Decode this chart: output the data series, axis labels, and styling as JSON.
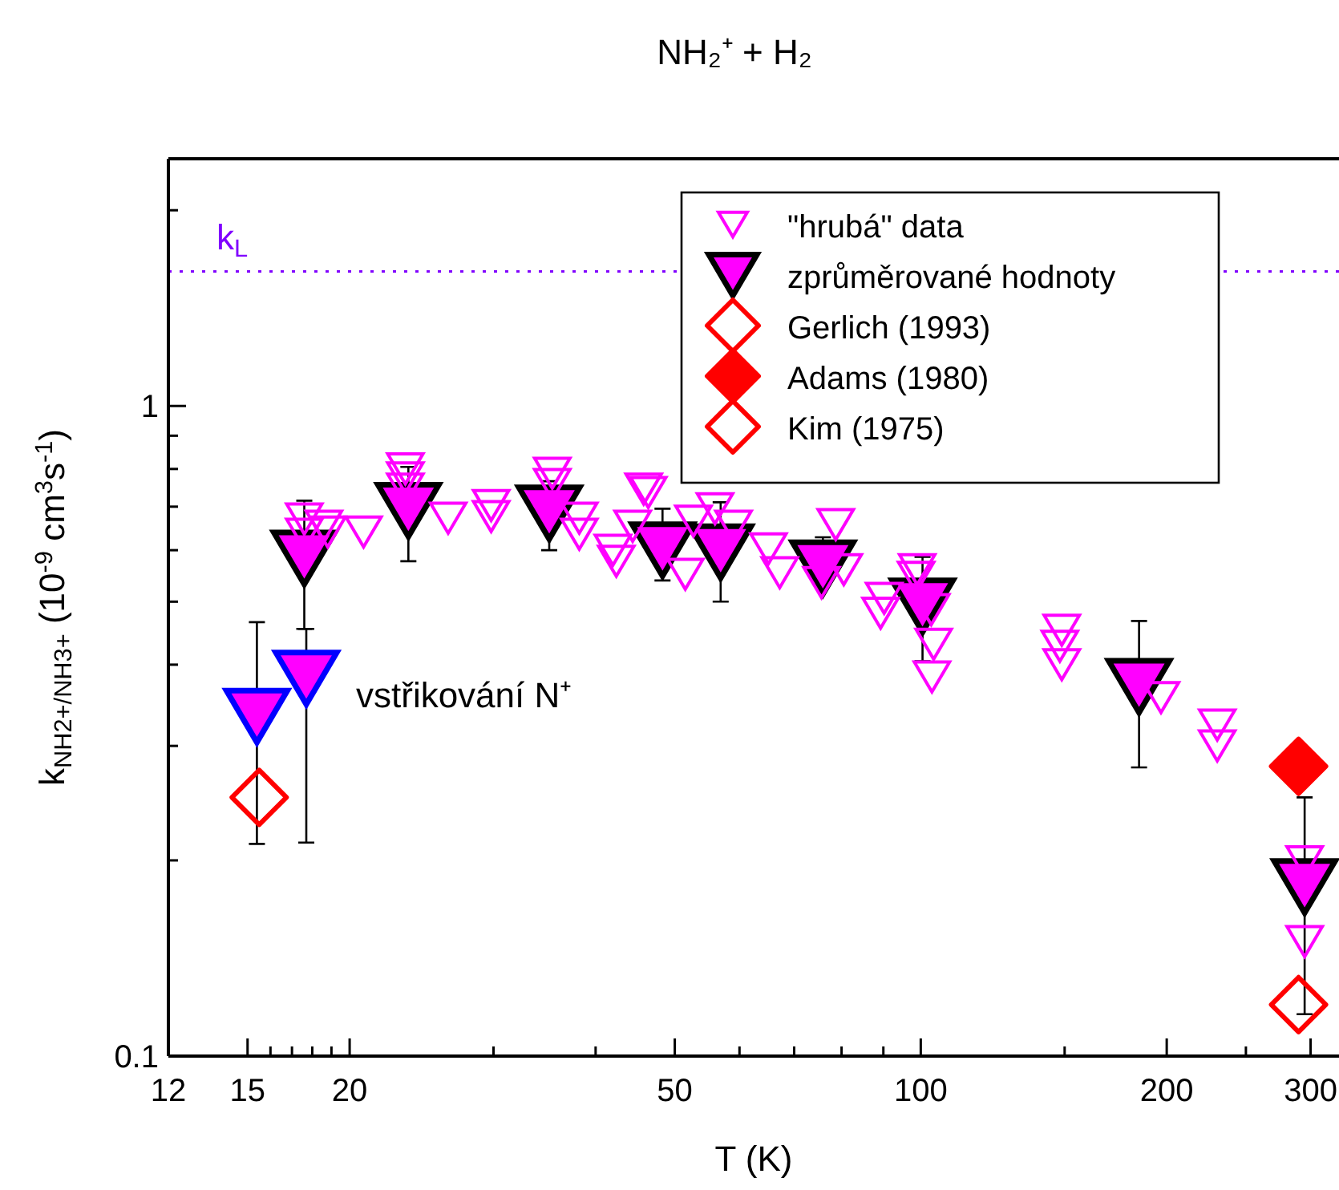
{
  "chart_data": {
    "type": "scatter",
    "title": "NH₂⁺ + H₂",
    "xlabel": "T (K)",
    "ylabel": "k$_{NH2+/NH3+}$ (10$^{-9}$ cm$^{3}$s$^{-1}$)",
    "log": "xy",
    "xlim": [
      12,
      325
    ],
    "ylim": [
      0.1,
      2.4
    ],
    "xticks": [
      12,
      15,
      {
        "value": 16,
        "label": null
      },
      {
        "value": 17,
        "label": null
      },
      {
        "value": 18,
        "label": null
      },
      {
        "value": 19,
        "label": null
      },
      20,
      {
        "value": 30,
        "label": null
      },
      {
        "value": 40,
        "label": null
      },
      50,
      {
        "value": 60,
        "label": null
      },
      {
        "value": 70,
        "label": null
      },
      {
        "value": 80,
        "label": null
      },
      {
        "value": 90,
        "label": null
      },
      100,
      {
        "value": 150,
        "label": null
      },
      200,
      {
        "value": 250,
        "label": null
      },
      300
    ],
    "yticks": [
      0.1,
      {
        "value": 0.2,
        "label": null
      },
      {
        "value": 0.3,
        "label": null
      },
      {
        "value": 0.4,
        "label": null
      },
      {
        "value": 0.5,
        "label": null
      },
      {
        "value": 0.6,
        "label": null
      },
      {
        "value": 0.7,
        "label": null
      },
      {
        "value": 0.8,
        "label": null
      },
      {
        "value": 0.9,
        "label": null
      },
      1,
      {
        "value": 2,
        "label": null
      }
    ],
    "grid": false,
    "legend": "top right",
    "ref_lines": [
      {
        "axis": "y",
        "value": 1.61,
        "label": "k$_{L}$",
        "color": "#8000ff",
        "line_style": "dotted"
      }
    ],
    "annotations": [
      "vstřikování N⁺"
    ],
    "series": [
      {
        "name": "\"hrubá\" data",
        "color": "#ff00ff",
        "marker": "triangle",
        "x": [
          17.6,
          18.6,
          17.6,
          18.8,
          20.8,
          23.4,
          23.4,
          23.4,
          26.4,
          29.8,
          29.8,
          35.4,
          35.4,
          38.2,
          38.2,
          45.8,
          42,
          42.4,
          44.4,
          51.5,
          52.7,
          46.4,
          56,
          59,
          65.1,
          67.2,
          78.7,
          80.5,
          75.6,
          90.2,
          89.3,
          99,
          98.7,
          103,
          103.7,
          103.2,
          148.8,
          148,
          148.8,
          196.8,
          230.6,
          230.6,
          295,
          295
        ],
        "values": [
          0.67,
          0.653,
          0.635,
          0.64,
          0.64,
          0.8,
          0.775,
          0.745,
          0.672,
          0.703,
          0.676,
          0.788,
          0.757,
          0.672,
          0.635,
          0.745,
          0.6,
          0.577,
          0.653,
          0.551,
          0.665,
          0.736,
          0.695,
          0.653,
          0.603,
          0.554,
          0.657,
          0.56,
          0.535,
          0.506,
          0.48,
          0.56,
          0.545,
          0.486,
          0.43,
          0.383,
          0.452,
          0.427,
          0.4,
          0.356,
          0.323,
          0.3,
          0.199,
          0.15
        ]
      },
      {
        "name": "zprůměrované hodnoty",
        "color": "#ff00ff",
        "marker": "triangle",
        "x": [
          17.6,
          23.6,
          35.1,
          48.3,
          56.9,
          75.9,
          100.5,
          185,
          295
        ],
        "values": [
          0.583,
          0.69,
          0.684,
          0.6,
          0.596,
          0.563,
          0.492,
          0.37,
          0.182
        ],
        "errors": [
          [
            0.454,
            0.715
          ],
          [
            0.577,
            0.806
          ],
          [
            0.6,
            0.766
          ],
          [
            0.539,
            0.695
          ],
          [
            0.5,
            0.711
          ],
          [
            0.54,
            0.628
          ],
          [
            0.405,
            0.586
          ],
          [
            0.278,
            0.467
          ],
          [
            0.116,
            0.25
          ]
        ]
      },
      {
        "color": "#ff00ff",
        "marker": "triangle",
        "x": [
          15.4,
          17.7
        ],
        "values": [
          0.333,
          0.381
        ],
        "errors": [
          [
            0.212,
            0.465
          ],
          [
            0.213,
            0.454
          ]
        ]
      },
      {
        "name": "Gerlich (1993)",
        "color": "#ff0000",
        "marker": "diamond",
        "x": [
          15.5
        ],
        "values": [
          0.25
        ]
      },
      {
        "name": "Adams (1980)",
        "color": "#ff0000",
        "marker": "diamond",
        "x": [
          290
        ],
        "values": [
          0.279
        ]
      },
      {
        "name": "Kim (1975)",
        "color": "#ff0000",
        "marker": "diamond",
        "x": [
          290
        ],
        "values": [
          0.12
        ]
      }
    ]
  }
}
